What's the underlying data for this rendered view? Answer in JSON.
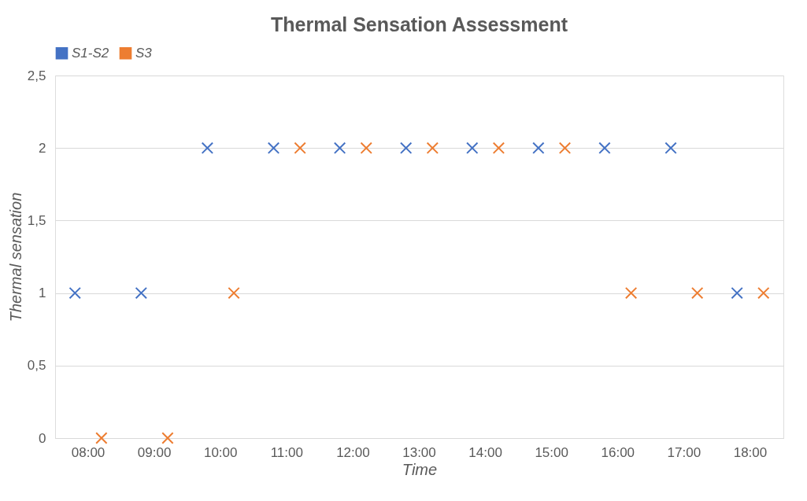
{
  "chart_data": {
    "type": "scatter",
    "title": "Thermal Sensation Assessment",
    "xlabel": "Time",
    "ylabel": "Thermal sensation",
    "categories": [
      "08:00",
      "09:00",
      "10:00",
      "11:00",
      "12:00",
      "13:00",
      "14:00",
      "15:00",
      "16:00",
      "17:00",
      "18:00"
    ],
    "series": [
      {
        "name": "S1-S2",
        "color": "#4472c4",
        "values": [
          1,
          1,
          2,
          2,
          2,
          2,
          2,
          2,
          2,
          2,
          1
        ]
      },
      {
        "name": "S3",
        "color": "#ed7d31",
        "values": [
          0,
          0,
          1,
          2,
          2,
          2,
          2,
          2,
          1,
          1,
          1
        ]
      }
    ],
    "ylim": [
      0,
      2.5
    ],
    "yticks": [
      0,
      {
        "value": 0.5,
        "label": "0,5"
      },
      1,
      {
        "value": 1.5,
        "label": "1,5"
      },
      2,
      {
        "value": 2.5,
        "label": "2,5"
      }
    ],
    "grid": "y",
    "legend": "top",
    "marker": "cross"
  }
}
